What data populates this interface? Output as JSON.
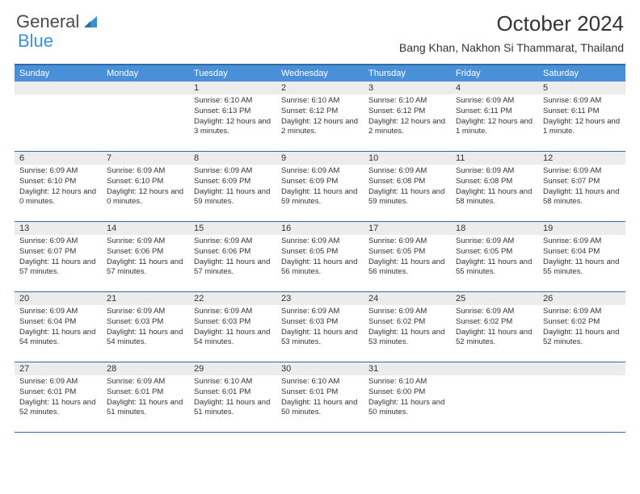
{
  "logo": {
    "text1": "General",
    "text2": "Blue"
  },
  "title": "October 2024",
  "location": "Bang Khan, Nakhon Si Thammarat, Thailand",
  "colors": {
    "header_bg": "#4a90d9",
    "header_text": "#ffffff",
    "border": "#2e6da4",
    "numrow_bg": "#ececec",
    "body_text": "#333333",
    "logo_gray": "#4a4a4a",
    "logo_blue": "#3b8fd4"
  },
  "day_names": [
    "Sunday",
    "Monday",
    "Tuesday",
    "Wednesday",
    "Thursday",
    "Friday",
    "Saturday"
  ],
  "weeks": [
    [
      {
        "n": "",
        "lines": []
      },
      {
        "n": "",
        "lines": []
      },
      {
        "n": "1",
        "lines": [
          "Sunrise: 6:10 AM",
          "Sunset: 6:13 PM",
          "Daylight: 12 hours and 3 minutes."
        ]
      },
      {
        "n": "2",
        "lines": [
          "Sunrise: 6:10 AM",
          "Sunset: 6:12 PM",
          "Daylight: 12 hours and 2 minutes."
        ]
      },
      {
        "n": "3",
        "lines": [
          "Sunrise: 6:10 AM",
          "Sunset: 6:12 PM",
          "Daylight: 12 hours and 2 minutes."
        ]
      },
      {
        "n": "4",
        "lines": [
          "Sunrise: 6:09 AM",
          "Sunset: 6:11 PM",
          "Daylight: 12 hours and 1 minute."
        ]
      },
      {
        "n": "5",
        "lines": [
          "Sunrise: 6:09 AM",
          "Sunset: 6:11 PM",
          "Daylight: 12 hours and 1 minute."
        ]
      }
    ],
    [
      {
        "n": "6",
        "lines": [
          "Sunrise: 6:09 AM",
          "Sunset: 6:10 PM",
          "Daylight: 12 hours and 0 minutes."
        ]
      },
      {
        "n": "7",
        "lines": [
          "Sunrise: 6:09 AM",
          "Sunset: 6:10 PM",
          "Daylight: 12 hours and 0 minutes."
        ]
      },
      {
        "n": "8",
        "lines": [
          "Sunrise: 6:09 AM",
          "Sunset: 6:09 PM",
          "Daylight: 11 hours and 59 minutes."
        ]
      },
      {
        "n": "9",
        "lines": [
          "Sunrise: 6:09 AM",
          "Sunset: 6:09 PM",
          "Daylight: 11 hours and 59 minutes."
        ]
      },
      {
        "n": "10",
        "lines": [
          "Sunrise: 6:09 AM",
          "Sunset: 6:08 PM",
          "Daylight: 11 hours and 59 minutes."
        ]
      },
      {
        "n": "11",
        "lines": [
          "Sunrise: 6:09 AM",
          "Sunset: 6:08 PM",
          "Daylight: 11 hours and 58 minutes."
        ]
      },
      {
        "n": "12",
        "lines": [
          "Sunrise: 6:09 AM",
          "Sunset: 6:07 PM",
          "Daylight: 11 hours and 58 minutes."
        ]
      }
    ],
    [
      {
        "n": "13",
        "lines": [
          "Sunrise: 6:09 AM",
          "Sunset: 6:07 PM",
          "Daylight: 11 hours and 57 minutes."
        ]
      },
      {
        "n": "14",
        "lines": [
          "Sunrise: 6:09 AM",
          "Sunset: 6:06 PM",
          "Daylight: 11 hours and 57 minutes."
        ]
      },
      {
        "n": "15",
        "lines": [
          "Sunrise: 6:09 AM",
          "Sunset: 6:06 PM",
          "Daylight: 11 hours and 57 minutes."
        ]
      },
      {
        "n": "16",
        "lines": [
          "Sunrise: 6:09 AM",
          "Sunset: 6:05 PM",
          "Daylight: 11 hours and 56 minutes."
        ]
      },
      {
        "n": "17",
        "lines": [
          "Sunrise: 6:09 AM",
          "Sunset: 6:05 PM",
          "Daylight: 11 hours and 56 minutes."
        ]
      },
      {
        "n": "18",
        "lines": [
          "Sunrise: 6:09 AM",
          "Sunset: 6:05 PM",
          "Daylight: 11 hours and 55 minutes."
        ]
      },
      {
        "n": "19",
        "lines": [
          "Sunrise: 6:09 AM",
          "Sunset: 6:04 PM",
          "Daylight: 11 hours and 55 minutes."
        ]
      }
    ],
    [
      {
        "n": "20",
        "lines": [
          "Sunrise: 6:09 AM",
          "Sunset: 6:04 PM",
          "Daylight: 11 hours and 54 minutes."
        ]
      },
      {
        "n": "21",
        "lines": [
          "Sunrise: 6:09 AM",
          "Sunset: 6:03 PM",
          "Daylight: 11 hours and 54 minutes."
        ]
      },
      {
        "n": "22",
        "lines": [
          "Sunrise: 6:09 AM",
          "Sunset: 6:03 PM",
          "Daylight: 11 hours and 54 minutes."
        ]
      },
      {
        "n": "23",
        "lines": [
          "Sunrise: 6:09 AM",
          "Sunset: 6:03 PM",
          "Daylight: 11 hours and 53 minutes."
        ]
      },
      {
        "n": "24",
        "lines": [
          "Sunrise: 6:09 AM",
          "Sunset: 6:02 PM",
          "Daylight: 11 hours and 53 minutes."
        ]
      },
      {
        "n": "25",
        "lines": [
          "Sunrise: 6:09 AM",
          "Sunset: 6:02 PM",
          "Daylight: 11 hours and 52 minutes."
        ]
      },
      {
        "n": "26",
        "lines": [
          "Sunrise: 6:09 AM",
          "Sunset: 6:02 PM",
          "Daylight: 11 hours and 52 minutes."
        ]
      }
    ],
    [
      {
        "n": "27",
        "lines": [
          "Sunrise: 6:09 AM",
          "Sunset: 6:01 PM",
          "Daylight: 11 hours and 52 minutes."
        ]
      },
      {
        "n": "28",
        "lines": [
          "Sunrise: 6:09 AM",
          "Sunset: 6:01 PM",
          "Daylight: 11 hours and 51 minutes."
        ]
      },
      {
        "n": "29",
        "lines": [
          "Sunrise: 6:10 AM",
          "Sunset: 6:01 PM",
          "Daylight: 11 hours and 51 minutes."
        ]
      },
      {
        "n": "30",
        "lines": [
          "Sunrise: 6:10 AM",
          "Sunset: 6:01 PM",
          "Daylight: 11 hours and 50 minutes."
        ]
      },
      {
        "n": "31",
        "lines": [
          "Sunrise: 6:10 AM",
          "Sunset: 6:00 PM",
          "Daylight: 11 hours and 50 minutes."
        ]
      },
      {
        "n": "",
        "lines": []
      },
      {
        "n": "",
        "lines": []
      }
    ]
  ]
}
